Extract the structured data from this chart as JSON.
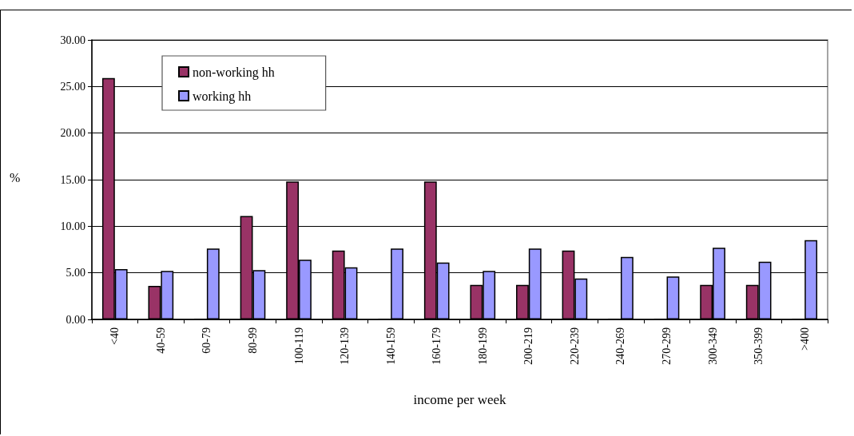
{
  "chart_data": {
    "type": "bar",
    "xlabel": "income per week",
    "ylabel": "%",
    "categories": [
      "<40",
      "40-59",
      "60-79",
      "80-99",
      "100-119",
      "120-139",
      "140-159",
      "160-179",
      "180-199",
      "200-219",
      "220-239",
      "240-269",
      "270-299",
      "300-349",
      "350-399",
      ">400"
    ],
    "series": [
      {
        "name": "non-working hh",
        "color": "#993366",
        "values": [
          25.9,
          3.6,
          0,
          11.1,
          14.8,
          7.4,
          0,
          14.8,
          3.7,
          3.7,
          7.4,
          0,
          0,
          3.7,
          3.7,
          0
        ]
      },
      {
        "name": "working hh",
        "color": "#9999ff",
        "values": [
          5.4,
          5.2,
          7.6,
          5.3,
          6.4,
          5.6,
          7.6,
          6.1,
          5.2,
          7.6,
          4.4,
          6.7,
          4.6,
          7.7,
          6.2,
          8.5
        ]
      }
    ],
    "ylim": [
      0,
      30
    ],
    "yticks": [
      {
        "value": 0,
        "label": "0.00"
      },
      {
        "value": 5,
        "label": "5.00"
      },
      {
        "value": 10,
        "label": "10.00"
      },
      {
        "value": 15,
        "label": "15.00"
      },
      {
        "value": 20,
        "label": "20.00"
      },
      {
        "value": 25,
        "label": "25.00"
      },
      {
        "value": 30,
        "label": "30.00"
      }
    ],
    "grid": "y",
    "legend": "top left"
  }
}
